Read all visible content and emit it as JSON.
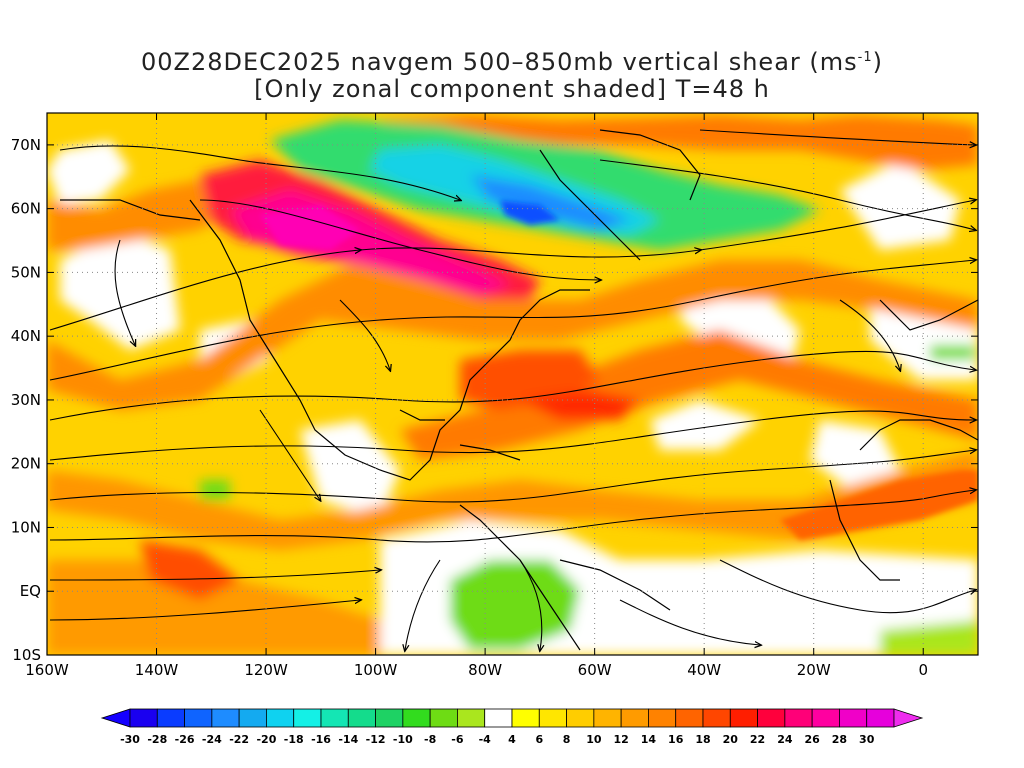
{
  "title": {
    "line1_prefix": "00Z28DEC2025 navgem 500–850mb vertical shear (ms",
    "line1_sup": "-1",
    "line1_suffix": ")",
    "line2": "[Only zonal component shaded] T=48 h"
  },
  "map": {
    "lon_range": [
      -160,
      10
    ],
    "lat_range": [
      -10,
      75
    ],
    "lat_tick_labels": [
      "70N",
      "60N",
      "50N",
      "40N",
      "30N",
      "20N",
      "10N",
      "EQ",
      "10S"
    ],
    "lat_tick_values": [
      70,
      60,
      50,
      40,
      30,
      20,
      10,
      0,
      -10
    ],
    "lon_tick_labels": [
      "160W",
      "140W",
      "120W",
      "100W",
      "80W",
      "60W",
      "40W",
      "20W",
      "0"
    ],
    "lon_tick_values": [
      -160,
      -140,
      -120,
      -100,
      -80,
      -60,
      -40,
      -20,
      0
    ],
    "grid": true
  },
  "colorbar": {
    "labels": [
      "-30",
      "-28",
      "-26",
      "-24",
      "-22",
      "-20",
      "-18",
      "-16",
      "-14",
      "-12",
      "-10",
      "-8",
      "-6",
      "-4",
      "4",
      "6",
      "8",
      "10",
      "12",
      "14",
      "16",
      "18",
      "20",
      "22",
      "24",
      "26",
      "28",
      "30"
    ],
    "colors": [
      "#1a00f0",
      "#0a3cff",
      "#0f64ff",
      "#1e8cff",
      "#14aaf0",
      "#0fd2f0",
      "#14f0e6",
      "#14e6b4",
      "#14dc8c",
      "#1ed264",
      "#32dc1e",
      "#6edc14",
      "#aae61e",
      "#ffffff",
      "#ffff00",
      "#ffe600",
      "#ffcd00",
      "#ffb400",
      "#ff9b00",
      "#ff8200",
      "#ff6400",
      "#ff4600",
      "#ff1e00",
      "#ff003c",
      "#ff0078",
      "#ff00a0",
      "#f000c8",
      "#e600dc"
    ],
    "under_color": "#1400ff",
    "over_color": "#ee2dee"
  }
}
